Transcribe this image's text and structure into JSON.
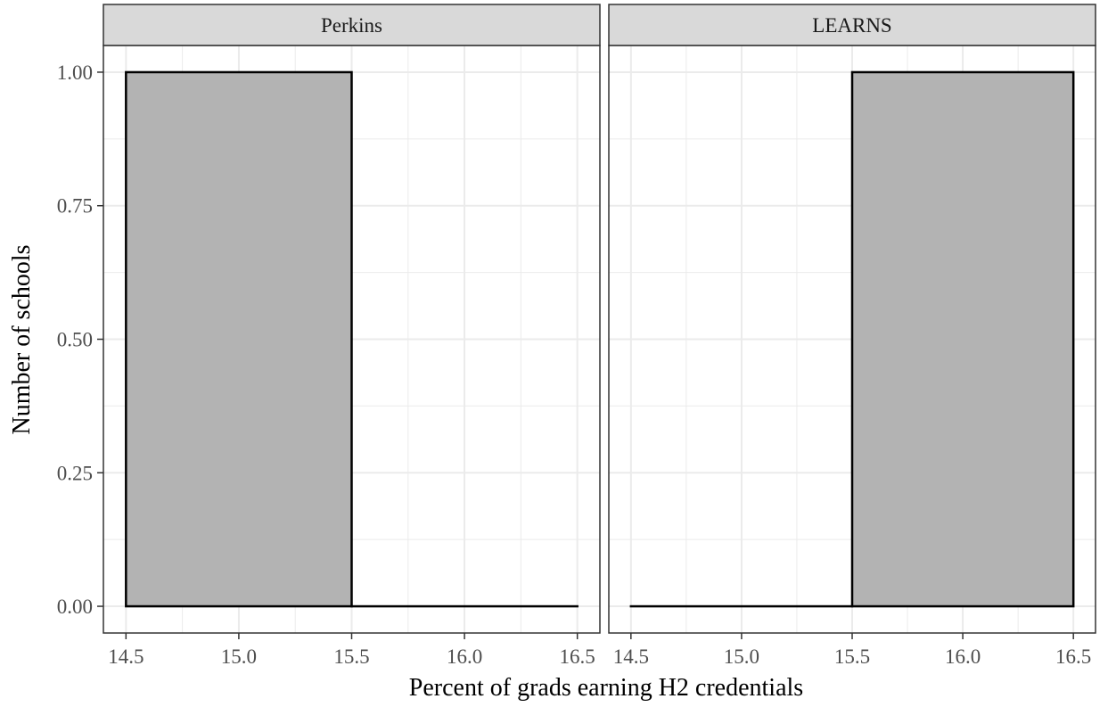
{
  "chart_data": {
    "type": "bar",
    "xlabel": "Percent of grads earning H2 credentials",
    "ylabel": "Number of schools",
    "xlim": [
      14.4,
      16.6
    ],
    "ylim": [
      -0.05,
      1.05
    ],
    "x_ticks": [
      14.5,
      15.0,
      15.5,
      16.0,
      16.5
    ],
    "x_tick_labels": [
      "14.5",
      "15.0",
      "15.5",
      "16.0",
      "16.5"
    ],
    "y_ticks": [
      0,
      0.25,
      0.5,
      0.75,
      1.0
    ],
    "y_tick_labels": [
      "0.00",
      "0.25",
      "0.50",
      "0.75",
      "1.00"
    ],
    "grid": true,
    "bar_fill": "#b3b3b3",
    "bar_stroke": "#000000",
    "panels": [
      {
        "label": "Perkins",
        "bins": [
          {
            "x0": 14.5,
            "x1": 15.5,
            "count": 1
          },
          {
            "x0": 15.5,
            "x1": 16.5,
            "count": 0
          }
        ]
      },
      {
        "label": "LEARNS",
        "bins": [
          {
            "x0": 14.5,
            "x1": 15.5,
            "count": 0
          },
          {
            "x0": 15.5,
            "x1": 16.5,
            "count": 1
          }
        ]
      }
    ]
  }
}
